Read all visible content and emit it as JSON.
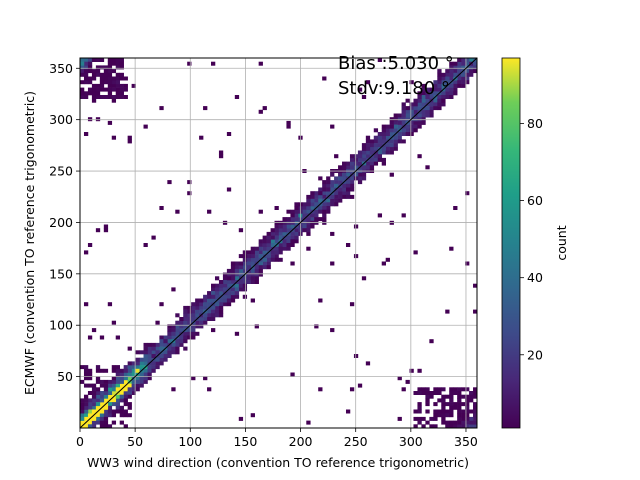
{
  "chart_data": {
    "type": "heatmap",
    "title": "",
    "xlabel": "WW3 wind direction (convention TO reference trigonometric)",
    "ylabel": "ECMWF (convention TO reference trigonometric)",
    "xlim": [
      0,
      360
    ],
    "ylim": [
      0,
      360
    ],
    "xticks": [
      0,
      50,
      100,
      150,
      200,
      250,
      300,
      350
    ],
    "yticks": [
      50,
      100,
      150,
      200,
      250,
      300,
      350
    ],
    "grid": true,
    "bin_size_deg": 3.6,
    "annotations": {
      "bias": "Bias :5.030 °",
      "stdv": "Stdv:9.180 °"
    },
    "reference_line": {
      "from": [
        0,
        0
      ],
      "to": [
        360,
        360
      ]
    },
    "colorbar": {
      "label": "count",
      "colormap": "viridis",
      "range": [
        1,
        97
      ],
      "ticks": [
        20,
        40,
        60,
        80
      ]
    },
    "series": [
      {
        "description_of": "diagonal density",
        "peak_count_near_origin": 85,
        "typical_diagonal_count": 15
      }
    ],
    "offdiagonal_clusters": [
      {
        "x_range": [
          0,
          45
        ],
        "y_range": [
          0,
          60
        ]
      },
      {
        "x_range": [
          305,
          360
        ],
        "y_range": [
          0,
          40
        ]
      },
      {
        "x_range": [
          0,
          40
        ],
        "y_range": [
          320,
          360
        ]
      }
    ]
  },
  "colors": {
    "viridis_low": "#440154",
    "viridis_high": "#fde725",
    "grid": "#b0b0b0",
    "axes": "#000000"
  }
}
